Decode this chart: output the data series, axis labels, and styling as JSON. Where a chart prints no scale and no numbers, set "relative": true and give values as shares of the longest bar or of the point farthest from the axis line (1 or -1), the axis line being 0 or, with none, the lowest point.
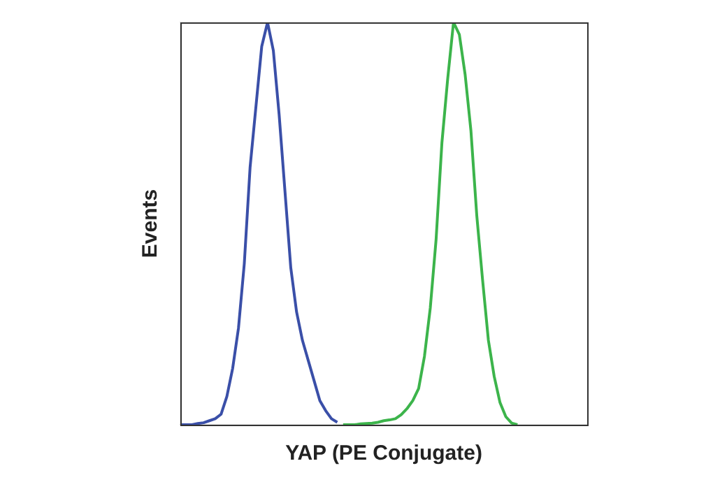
{
  "chart_data": {
    "type": "line",
    "relative": true,
    "xlabel": "YAP (PE Conjugate)",
    "ylabel": "Events",
    "tick_labels": false,
    "grid": false,
    "legend": false,
    "marker": "none",
    "categories": [
      null,
      null,
      null,
      null,
      null,
      null,
      null,
      null,
      null,
      null,
      null,
      null,
      null,
      null,
      null,
      null,
      null,
      null,
      null,
      null,
      null,
      null,
      null,
      null,
      null,
      null,
      null,
      null,
      null,
      null,
      null,
      null,
      null,
      null,
      null,
      null,
      null,
      null,
      null,
      null,
      null,
      null,
      null,
      null,
      null,
      null,
      null,
      null,
      null,
      null,
      null,
      null,
      null,
      null,
      null,
      null,
      null,
      null,
      null,
      null,
      null,
      null,
      null,
      null,
      null,
      null,
      null,
      null,
      null,
      null,
      null
    ],
    "series": [
      {
        "color": "#3a4fa8",
        "values": [
          0,
          0,
          0,
          0.003,
          0.005,
          0.01,
          0.015,
          0.026,
          0.07,
          0.14,
          0.24,
          0.4,
          0.64,
          0.79,
          0.94,
          1,
          0.93,
          0.77,
          0.58,
          0.39,
          0.28,
          0.21,
          0.16,
          0.11,
          0.06,
          0.035,
          0.015,
          0.006,
          null,
          null,
          null,
          null,
          null,
          null,
          null,
          null,
          null,
          null,
          null,
          null,
          null,
          null,
          null,
          null,
          null,
          null,
          null,
          null,
          null,
          null,
          null,
          null,
          null,
          null,
          null,
          null,
          null,
          null,
          null,
          null,
          null,
          null,
          null,
          null,
          null,
          null,
          null,
          null,
          null,
          null,
          null
        ]
      },
      {
        "color": "#3cb44b",
        "values": [
          null,
          null,
          null,
          null,
          null,
          null,
          null,
          null,
          null,
          null,
          null,
          null,
          null,
          null,
          null,
          null,
          null,
          null,
          null,
          null,
          null,
          null,
          null,
          null,
          null,
          null,
          null,
          null,
          0,
          0,
          0,
          0.002,
          0.003,
          0.004,
          0.006,
          0.01,
          0.012,
          0.015,
          0.025,
          0.04,
          0.06,
          0.09,
          0.17,
          0.29,
          0.46,
          0.7,
          0.86,
          1,
          0.97,
          0.87,
          0.73,
          0.52,
          0.36,
          0.21,
          0.12,
          0.055,
          0.02,
          0.004,
          0,
          null,
          null,
          null,
          null,
          null,
          null,
          null,
          null,
          null,
          null,
          null,
          null
        ]
      }
    ]
  }
}
